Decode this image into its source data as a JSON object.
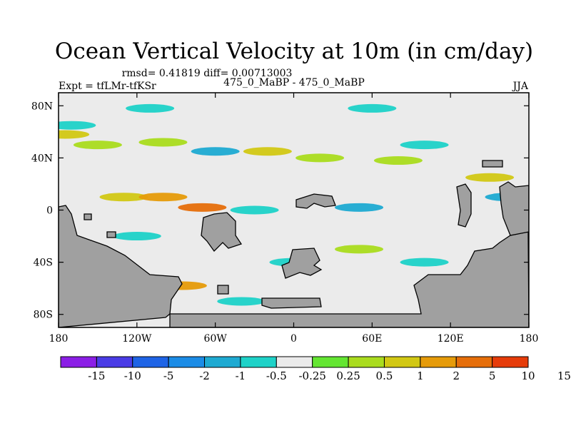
{
  "chart_data": {
    "type": "heatmap",
    "title": "Ocean Vertical Velocity at 10m (in cm/day)",
    "stats_line": "rmsd= 0.41819 diff= 0.00713003",
    "left_label": "Expt = tfLMr-tfKSr",
    "center_label": "475_0_MaBP - 475_0_MaBP",
    "right_label": "JJA",
    "x_axis": {
      "range": [
        -180,
        180
      ],
      "tick_values": [
        -180,
        -120,
        -60,
        0,
        60,
        120,
        180
      ],
      "tick_labels": [
        "180",
        "120W",
        "60W",
        "0",
        "60E",
        "120E",
        "180"
      ]
    },
    "y_axis": {
      "range": [
        -90,
        90
      ],
      "tick_values": [
        80,
        40,
        0,
        -40,
        -80
      ],
      "tick_labels": [
        "80N",
        "40N",
        "0",
        "40S",
        "80S"
      ]
    },
    "colorbar": {
      "colors": [
        "#8b1ee6",
        "#4a3ce6",
        "#1e64e6",
        "#1b8ce6",
        "#1eaad2",
        "#1ed2c8",
        "#ebebeb",
        "#64e632",
        "#aadc1e",
        "#d2c814",
        "#e69b0a",
        "#e66e0a",
        "#e63c0a"
      ],
      "labels": [
        "-15",
        "-10",
        "-5",
        "-2",
        "-1",
        "-0.5",
        "-0.25",
        "0.25",
        "0.5",
        "1",
        "2",
        "5",
        "10",
        "15"
      ]
    },
    "land_color": "#a0a0a0",
    "positive_patches": [
      {
        "lon": -150,
        "lat": 50,
        "level": 0.5
      },
      {
        "lon": -100,
        "lat": 52,
        "level": 0.5
      },
      {
        "lon": -20,
        "lat": 45,
        "level": 1
      },
      {
        "lon": 20,
        "lat": 40,
        "level": 0.5
      },
      {
        "lon": 80,
        "lat": 38,
        "level": 0.5
      },
      {
        "lon": -130,
        "lat": 10,
        "level": 1
      },
      {
        "lon": -100,
        "lat": 10,
        "level": 2
      },
      {
        "lon": -70,
        "lat": 2,
        "level": 5
      },
      {
        "lon": -175,
        "lat": 58,
        "level": 1
      },
      {
        "lon": 150,
        "lat": 25,
        "level": 1
      },
      {
        "lon": -85,
        "lat": -58,
        "level": 2
      },
      {
        "lon": 50,
        "lat": -30,
        "level": 0.5
      }
    ],
    "negative_patches": [
      {
        "lon": -170,
        "lat": 65,
        "level": -0.5
      },
      {
        "lon": -110,
        "lat": 78,
        "level": -0.5
      },
      {
        "lon": 60,
        "lat": 78,
        "level": -0.5
      },
      {
        "lon": -60,
        "lat": 45,
        "level": -1
      },
      {
        "lon": 100,
        "lat": 50,
        "level": -0.5
      },
      {
        "lon": 50,
        "lat": 2,
        "level": -1
      },
      {
        "lon": -30,
        "lat": 0,
        "level": -0.5
      },
      {
        "lon": 165,
        "lat": 10,
        "level": -1
      },
      {
        "lon": -120,
        "lat": -20,
        "level": -0.5
      },
      {
        "lon": 0,
        "lat": -40,
        "level": -0.5
      },
      {
        "lon": 100,
        "lat": -40,
        "level": -0.5
      },
      {
        "lon": -40,
        "lat": -70,
        "level": -0.5
      }
    ]
  }
}
